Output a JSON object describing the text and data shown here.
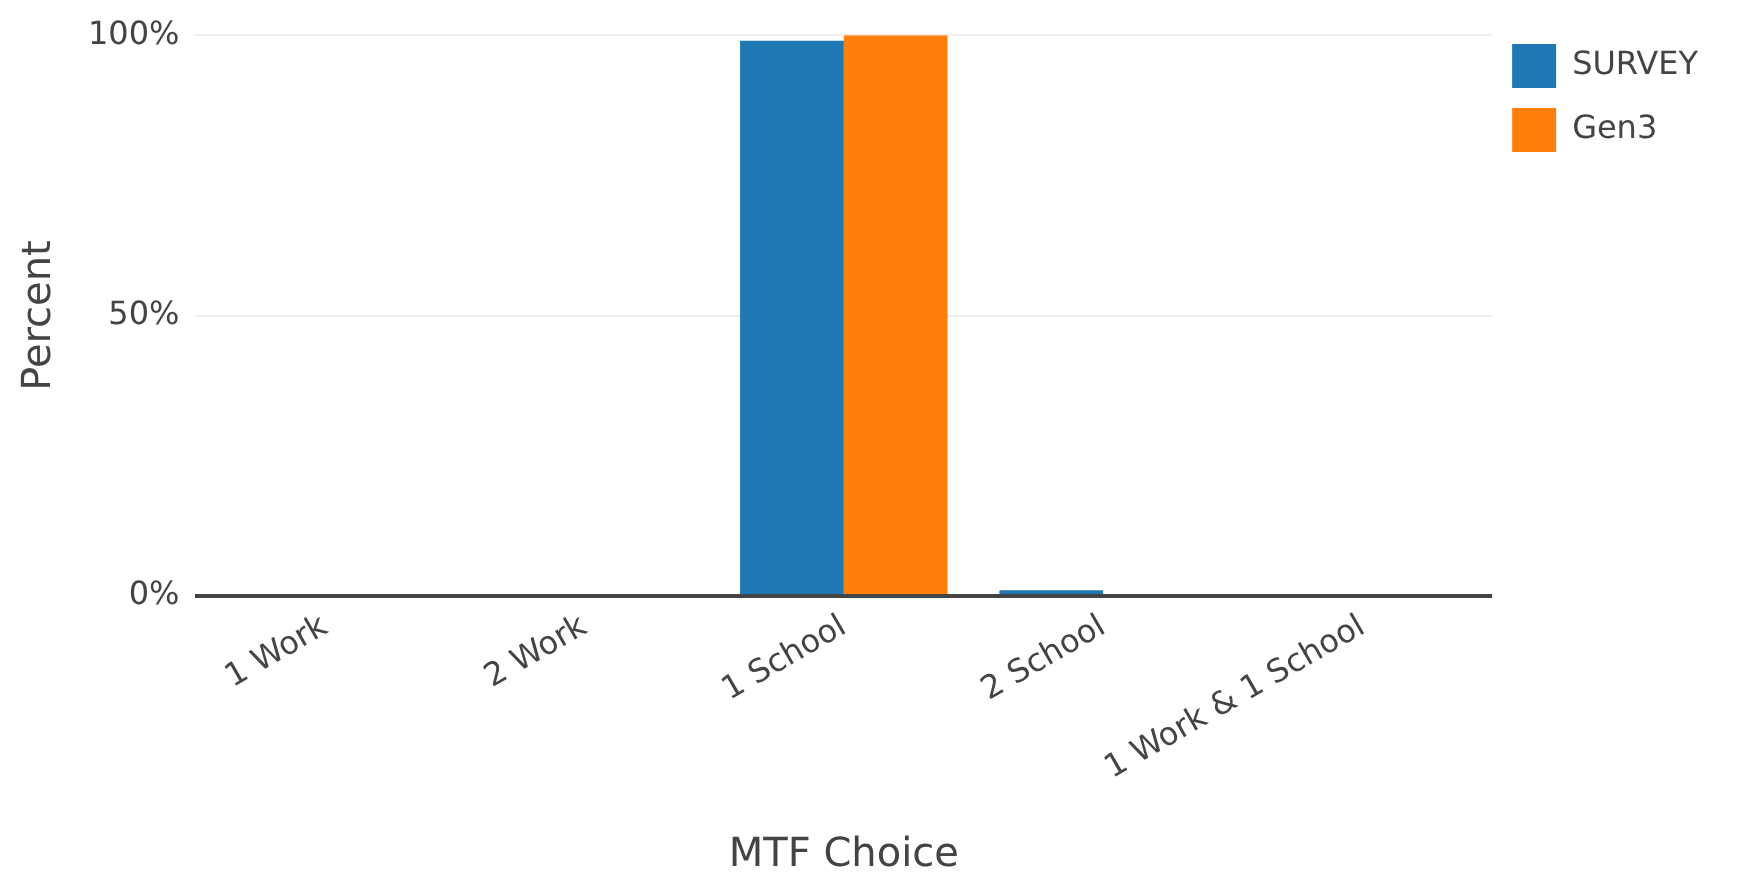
{
  "chart_data": {
    "type": "bar",
    "xlabel": "MTF Choice",
    "ylabel": "Percent",
    "categories": [
      "1 Work",
      "2 Work",
      "1 School",
      "2 School",
      "1 Work & 1 School"
    ],
    "series": [
      {
        "name": "SURVEY",
        "color": "#1f77b4",
        "values": [
          0,
          0,
          99,
          1,
          0
        ]
      },
      {
        "name": "Gen3",
        "color": "#ff7f0e",
        "values": [
          0,
          0,
          100,
          0,
          0
        ]
      }
    ],
    "ylim": [
      0,
      100
    ],
    "yticks": [
      {
        "value": 0,
        "label": "0%"
      },
      {
        "value": 50,
        "label": "50%"
      },
      {
        "value": 100,
        "label": "100%"
      }
    ],
    "grid": "y",
    "legend": "top right"
  }
}
